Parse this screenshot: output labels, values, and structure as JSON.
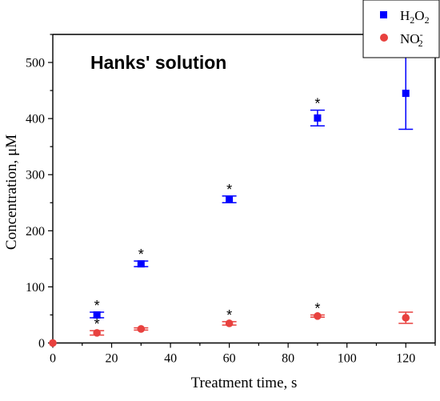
{
  "chart_data": {
    "type": "scatter",
    "title": "Hanks' solution",
    "xlabel": "Treatment time, s",
    "ylabel": "Concentration, μM",
    "xlim": [
      0,
      130
    ],
    "ylim": [
      0,
      550
    ],
    "x_ticks": [
      0,
      20,
      40,
      60,
      80,
      100,
      120
    ],
    "y_ticks": [
      0,
      100,
      200,
      300,
      400,
      500
    ],
    "grid": false,
    "legend_position": "top-right",
    "series": [
      {
        "name": "H₂O₂",
        "legend_main": "H",
        "legend_sub1": "2",
        "legend_mid": "O",
        "legend_sub2": "2",
        "color": "#0000ff",
        "marker": "square",
        "points": [
          {
            "x": 15,
            "y": 50,
            "err": 5,
            "significant": true
          },
          {
            "x": 30,
            "y": 141,
            "err": 5,
            "significant": true
          },
          {
            "x": 60,
            "y": 256,
            "err": 6,
            "significant": true
          },
          {
            "x": 90,
            "y": 401,
            "err": 14,
            "significant": true
          },
          {
            "x": 120,
            "y": 445,
            "err": 64,
            "significant": true
          }
        ]
      },
      {
        "name": "NO₂⁻",
        "legend_main": "NO",
        "legend_sub": "2",
        "legend_sup": "-",
        "color": "#e8413e",
        "marker": "circle",
        "points": [
          {
            "x": 0,
            "y": 0,
            "err": 0,
            "significant": false
          },
          {
            "x": 15,
            "y": 18,
            "err": 4,
            "significant": true
          },
          {
            "x": 30,
            "y": 25,
            "err": 2,
            "significant": false
          },
          {
            "x": 60,
            "y": 35,
            "err": 3,
            "significant": true
          },
          {
            "x": 90,
            "y": 48,
            "err": 2,
            "significant": true
          },
          {
            "x": 120,
            "y": 45,
            "err": 10,
            "significant": false
          }
        ]
      }
    ],
    "significance_marker": "*"
  }
}
